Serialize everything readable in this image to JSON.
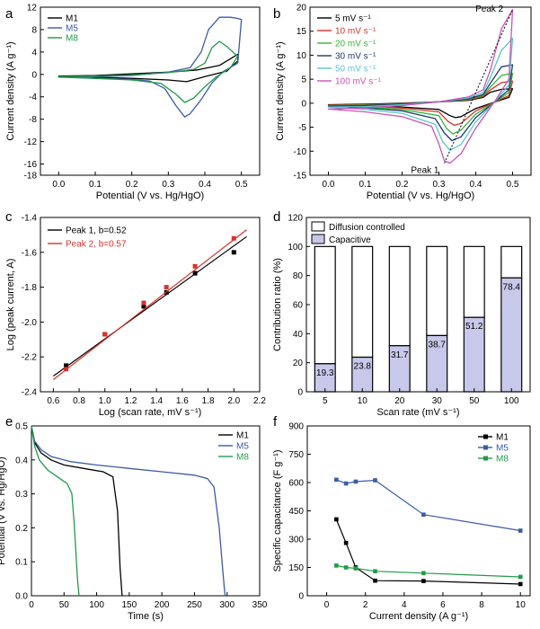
{
  "chart_data": [
    {
      "id": "a",
      "type": "line",
      "panel_label": "a",
      "xlabel": "Potential (V vs. Hg/HgO)",
      "ylabel": "Current density (A g⁻¹)",
      "xlim": [
        -0.05,
        0.55
      ],
      "ylim": [
        -18,
        12
      ],
      "xticks": [
        0.0,
        0.1,
        0.2,
        0.3,
        0.4,
        0.5
      ],
      "xtick_labels": [
        "0.0",
        "0.1",
        "0.2",
        "0.3",
        "0.4",
        "0.5"
      ],
      "yticks": [
        -18,
        -16,
        -12,
        -8,
        -4,
        0,
        4,
        8,
        12
      ],
      "ytick_labels": [
        "-18",
        "-16",
        "-12",
        "-8",
        "-4",
        "0",
        "4",
        "8",
        "12"
      ],
      "legend_position": "top-left",
      "series": [
        {
          "name": "M1",
          "color": "#000000",
          "loop": true,
          "x": [
            0.0,
            0.1,
            0.2,
            0.3,
            0.38,
            0.44,
            0.49,
            0.49,
            0.46,
            0.4,
            0.35,
            0.3,
            0.2,
            0.1,
            0.0
          ],
          "y": [
            -0.3,
            -0.2,
            0.1,
            0.4,
            0.8,
            1.6,
            3.6,
            2.4,
            0.6,
            -0.4,
            -1.3,
            -1.0,
            -0.7,
            -0.5,
            -0.3
          ]
        },
        {
          "name": "M5",
          "color": "#3a5ba8",
          "loop": true,
          "x": [
            0.0,
            0.1,
            0.2,
            0.3,
            0.36,
            0.39,
            0.41,
            0.44,
            0.47,
            0.49,
            0.5,
            0.49,
            0.45,
            0.42,
            0.39,
            0.36,
            0.345,
            0.32,
            0.29,
            0.25,
            0.2,
            0.1,
            0.0
          ],
          "y": [
            -0.5,
            -0.4,
            -0.2,
            0.4,
            1.2,
            4.0,
            8.0,
            10.2,
            10.2,
            10.0,
            9.8,
            2.0,
            0.5,
            -1.5,
            -4.5,
            -7.0,
            -7.6,
            -5.5,
            -2.5,
            -1.2,
            -0.9,
            -0.7,
            -0.5
          ]
        },
        {
          "name": "M8",
          "color": "#239a4a",
          "loop": true,
          "x": [
            0.0,
            0.1,
            0.2,
            0.3,
            0.37,
            0.4,
            0.42,
            0.44,
            0.46,
            0.48,
            0.49,
            0.47,
            0.43,
            0.4,
            0.37,
            0.345,
            0.32,
            0.28,
            0.2,
            0.1,
            0.0
          ],
          "y": [
            -0.4,
            -0.3,
            -0.1,
            0.3,
            0.9,
            2.0,
            4.8,
            5.9,
            5.0,
            3.8,
            3.3,
            1.2,
            -0.5,
            -2.2,
            -4.2,
            -5.0,
            -3.5,
            -1.6,
            -1.0,
            -0.7,
            -0.4
          ]
        }
      ]
    },
    {
      "id": "b",
      "type": "line",
      "panel_label": "b",
      "xlabel": "Potential (V vs. Hg/HgO)",
      "ylabel": "Current density (A g⁻¹)",
      "xlim": [
        -0.05,
        0.55
      ],
      "ylim": [
        -15,
        20
      ],
      "xticks": [
        0.0,
        0.1,
        0.2,
        0.3,
        0.4,
        0.5
      ],
      "xtick_labels": [
        "0.0",
        "0.1",
        "0.2",
        "0.3",
        "0.4",
        "0.5"
      ],
      "yticks": [
        -15,
        -10,
        -5,
        0,
        5,
        10,
        15,
        20
      ],
      "ytick_labels": [
        "-15",
        "-10",
        "-5",
        "0",
        "5",
        "10",
        "15",
        "20"
      ],
      "legend_position": "top-left",
      "annotations": [
        {
          "text": "Peak 2",
          "x": 0.475,
          "y": 19.8
        },
        {
          "text": "Peak 1",
          "x": 0.3,
          "y": -13.8
        }
      ],
      "peak_guide": {
        "x": [
          0.315,
          0.5
        ],
        "y": [
          -12.5,
          19.5
        ]
      },
      "series": [
        {
          "name": "5   mV s⁻¹",
          "color": "#000000",
          "loop": true,
          "x": [
            0.0,
            0.1,
            0.2,
            0.3,
            0.38,
            0.42,
            0.44,
            0.47,
            0.5,
            0.49,
            0.45,
            0.4,
            0.36,
            0.345,
            0.33,
            0.3,
            0.2,
            0.1,
            0.0
          ],
          "y": [
            -0.3,
            -0.2,
            0.0,
            0.3,
            0.6,
            1.2,
            2.3,
            2.9,
            3.0,
            1.2,
            0.2,
            -1.1,
            -2.8,
            -3.0,
            -2.6,
            -1.3,
            -0.8,
            -0.5,
            -0.3
          ]
        },
        {
          "name": "10  mV s⁻¹",
          "color": "#d9322b",
          "loop": true,
          "x": [
            0.0,
            0.1,
            0.2,
            0.3,
            0.38,
            0.42,
            0.44,
            0.47,
            0.5,
            0.49,
            0.45,
            0.4,
            0.36,
            0.342,
            0.325,
            0.3,
            0.2,
            0.1,
            0.0
          ],
          "y": [
            -0.4,
            -0.3,
            -0.1,
            0.3,
            0.7,
            1.4,
            2.8,
            4.3,
            4.6,
            1.6,
            0.2,
            -1.6,
            -4.2,
            -4.6,
            -3.8,
            -1.8,
            -1.0,
            -0.6,
            -0.4
          ]
        },
        {
          "name": "20  mV s⁻¹",
          "color": "#33b533",
          "loop": true,
          "x": [
            0.0,
            0.1,
            0.2,
            0.3,
            0.38,
            0.42,
            0.44,
            0.47,
            0.5,
            0.49,
            0.45,
            0.4,
            0.36,
            0.338,
            0.32,
            0.3,
            0.2,
            0.1,
            0.0
          ],
          "y": [
            -0.5,
            -0.4,
            -0.2,
            0.3,
            0.8,
            1.6,
            3.4,
            5.8,
            6.2,
            2.2,
            0.2,
            -2.3,
            -5.6,
            -6.4,
            -5.2,
            -2.6,
            -1.3,
            -0.8,
            -0.5
          ]
        },
        {
          "name": "30  mV s⁻¹",
          "color": "#1f3a6e",
          "loop": true,
          "x": [
            0.0,
            0.1,
            0.2,
            0.3,
            0.38,
            0.42,
            0.44,
            0.47,
            0.5,
            0.49,
            0.45,
            0.4,
            0.36,
            0.335,
            0.315,
            0.29,
            0.2,
            0.1,
            0.0
          ],
          "y": [
            -0.6,
            -0.5,
            -0.2,
            0.3,
            0.9,
            1.8,
            4.2,
            7.6,
            8.0,
            2.8,
            0.2,
            -3.0,
            -7.0,
            -7.8,
            -6.2,
            -3.2,
            -1.6,
            -1.0,
            -0.6
          ]
        },
        {
          "name": "50  mV s⁻¹",
          "color": "#55c7cf",
          "loop": true,
          "x": [
            0.0,
            0.1,
            0.2,
            0.3,
            0.38,
            0.42,
            0.44,
            0.47,
            0.5,
            0.49,
            0.45,
            0.4,
            0.36,
            0.33,
            0.31,
            0.29,
            0.2,
            0.1,
            0.0
          ],
          "y": [
            -0.8,
            -0.7,
            -0.3,
            0.3,
            1.1,
            2.2,
            5.4,
            11.0,
            13.5,
            3.8,
            0.2,
            -3.9,
            -8.6,
            -9.8,
            -8.0,
            -4.4,
            -2.1,
            -1.3,
            -0.8
          ]
        },
        {
          "name": "100 mV s⁻¹",
          "color": "#c955b6",
          "loop": true,
          "x": [
            0.0,
            0.1,
            0.2,
            0.3,
            0.38,
            0.42,
            0.44,
            0.47,
            0.5,
            0.49,
            0.45,
            0.4,
            0.36,
            0.33,
            0.315,
            0.3,
            0.28,
            0.2,
            0.1,
            0.0
          ],
          "y": [
            -1.2,
            -1.0,
            -0.5,
            0.3,
            1.3,
            2.8,
            7.0,
            15.5,
            19.5,
            5.0,
            0.2,
            -5.2,
            -10.5,
            -12.5,
            -12.0,
            -8.5,
            -4.8,
            -2.8,
            -1.8,
            -1.2
          ]
        }
      ]
    },
    {
      "id": "c",
      "type": "scatter",
      "panel_label": "c",
      "xlabel": "Log (scan rate, mV s⁻¹)",
      "ylabel": "Log (peak current, A)",
      "xlim": [
        0.5,
        2.2
      ],
      "ylim": [
        -2.4,
        -1.4
      ],
      "xticks": [
        0.6,
        0.8,
        1.0,
        1.2,
        1.4,
        1.6,
        1.8,
        2.0,
        2.2
      ],
      "xtick_labels": [
        "0.6",
        "0.8",
        "1.0",
        "1.2",
        "1.4",
        "1.6",
        "1.8",
        "2.0",
        "2.2"
      ],
      "yticks": [
        -2.4,
        -2.2,
        -2.0,
        -1.8,
        -1.6,
        -1.4
      ],
      "ytick_labels": [
        "-2.4",
        "-2.2",
        "-2.0",
        "-1.8",
        "-1.6",
        "-1.4"
      ],
      "legend_position": "top-left",
      "series": [
        {
          "name": "Peak 1, b=0.52",
          "color": "#000000",
          "x": [
            0.699,
            1.0,
            1.301,
            1.477,
            1.699,
            2.0
          ],
          "y": [
            -2.25,
            -2.07,
            -1.91,
            -1.83,
            -1.72,
            -1.6
          ],
          "fit_x": [
            0.6,
            2.1
          ],
          "fit_y": [
            -2.31,
            -1.51
          ]
        },
        {
          "name": "Peak 2, b=0.57",
          "color": "#d9322b",
          "x": [
            0.699,
            1.0,
            1.301,
            1.477,
            1.699,
            2.0
          ],
          "y": [
            -2.27,
            -2.07,
            -1.89,
            -1.8,
            -1.68,
            -1.52
          ],
          "fit_x": [
            0.6,
            2.1
          ],
          "fit_y": [
            -2.33,
            -1.47
          ]
        }
      ]
    },
    {
      "id": "d",
      "type": "bar",
      "panel_label": "d",
      "xlabel": "Scan rate (mV s⁻¹)",
      "ylabel": "Contribution ratio (%)",
      "categories": [
        "5",
        "10",
        "20",
        "30",
        "50",
        "100"
      ],
      "ylim": [
        0,
        120
      ],
      "yticks": [
        0,
        20,
        40,
        60,
        80,
        100,
        120
      ],
      "ytick_labels": [
        "0",
        "20",
        "40",
        "60",
        "80",
        "100",
        "120"
      ],
      "legend_position": "top-left",
      "series": [
        {
          "name": "Capacitive",
          "color": "#c8c8ea",
          "values": [
            19.3,
            23.8,
            31.7,
            38.7,
            51.2,
            78.4
          ]
        },
        {
          "name": "Diffusion controlled",
          "color": "#ffffff",
          "values": [
            80.7,
            76.2,
            68.3,
            61.3,
            48.8,
            21.6
          ]
        }
      ],
      "data_labels": [
        "19.3",
        "23.8",
        "31.7",
        "38.7",
        "51.2",
        "78.4"
      ]
    },
    {
      "id": "e",
      "type": "line",
      "panel_label": "e",
      "xlabel": "Time (s)",
      "ylabel": "Potential (V vs. Hg/HgO)",
      "xlim": [
        0,
        350
      ],
      "ylim": [
        0.0,
        0.5
      ],
      "xticks": [
        0,
        50,
        100,
        150,
        200,
        250,
        300,
        350
      ],
      "xtick_labels": [
        "0",
        "50",
        "100",
        "150",
        "200",
        "250",
        "300",
        "350"
      ],
      "yticks": [
        0.0,
        0.1,
        0.2,
        0.3,
        0.4,
        0.5
      ],
      "ytick_labels": [
        "0.0",
        "0.1",
        "0.2",
        "0.3",
        "0.4",
        "0.5"
      ],
      "legend_position": "top-right",
      "series": [
        {
          "name": "M1",
          "color": "#000000",
          "x": [
            0,
            5,
            15,
            30,
            50,
            80,
            110,
            125,
            132,
            136,
            139
          ],
          "y": [
            0.5,
            0.45,
            0.42,
            0.4,
            0.385,
            0.375,
            0.365,
            0.35,
            0.25,
            0.08,
            0.0
          ]
        },
        {
          "name": "M5",
          "color": "#3a5ba8",
          "x": [
            0,
            5,
            15,
            30,
            60,
            100,
            150,
            200,
            250,
            270,
            280,
            288,
            294,
            297
          ],
          "y": [
            0.5,
            0.455,
            0.43,
            0.41,
            0.395,
            0.385,
            0.375,
            0.365,
            0.355,
            0.345,
            0.32,
            0.2,
            0.06,
            0.0
          ]
        },
        {
          "name": "M8",
          "color": "#239a4a",
          "x": [
            0,
            5,
            12,
            25,
            40,
            55,
            62,
            66,
            69,
            71,
            73
          ],
          "y": [
            0.5,
            0.44,
            0.4,
            0.37,
            0.35,
            0.33,
            0.3,
            0.2,
            0.1,
            0.04,
            0.0
          ]
        }
      ]
    },
    {
      "id": "f",
      "type": "line",
      "panel_label": "f",
      "xlabel": "Current density (A g⁻¹)",
      "ylabel": "Specific capacitance (F g⁻¹)",
      "xlim": [
        -1,
        10.5
      ],
      "ylim": [
        0,
        900
      ],
      "xticks": [
        0,
        2,
        4,
        6,
        8,
        10
      ],
      "xtick_labels": [
        "0",
        "2",
        "4",
        "6",
        "8",
        "10"
      ],
      "yticks": [
        0,
        150,
        300,
        450,
        600,
        750,
        900
      ],
      "ytick_labels": [
        "0",
        "150",
        "300",
        "450",
        "600",
        "750",
        "900"
      ],
      "legend_position": "top-right",
      "series": [
        {
          "name": "M1",
          "color": "#000000",
          "x": [
            0.5,
            1,
            1.5,
            2.5,
            5,
            10
          ],
          "y": [
            405,
            280,
            150,
            80,
            78,
            62
          ]
        },
        {
          "name": "M5",
          "color": "#3a5ba8",
          "x": [
            0.5,
            1,
            1.5,
            2.5,
            5,
            10
          ],
          "y": [
            615,
            595,
            605,
            612,
            430,
            345
          ]
        },
        {
          "name": "M8",
          "color": "#239a4a",
          "x": [
            0.5,
            1,
            1.5,
            2.5,
            5,
            10
          ],
          "y": [
            160,
            150,
            145,
            130,
            120,
            100
          ]
        }
      ]
    }
  ]
}
